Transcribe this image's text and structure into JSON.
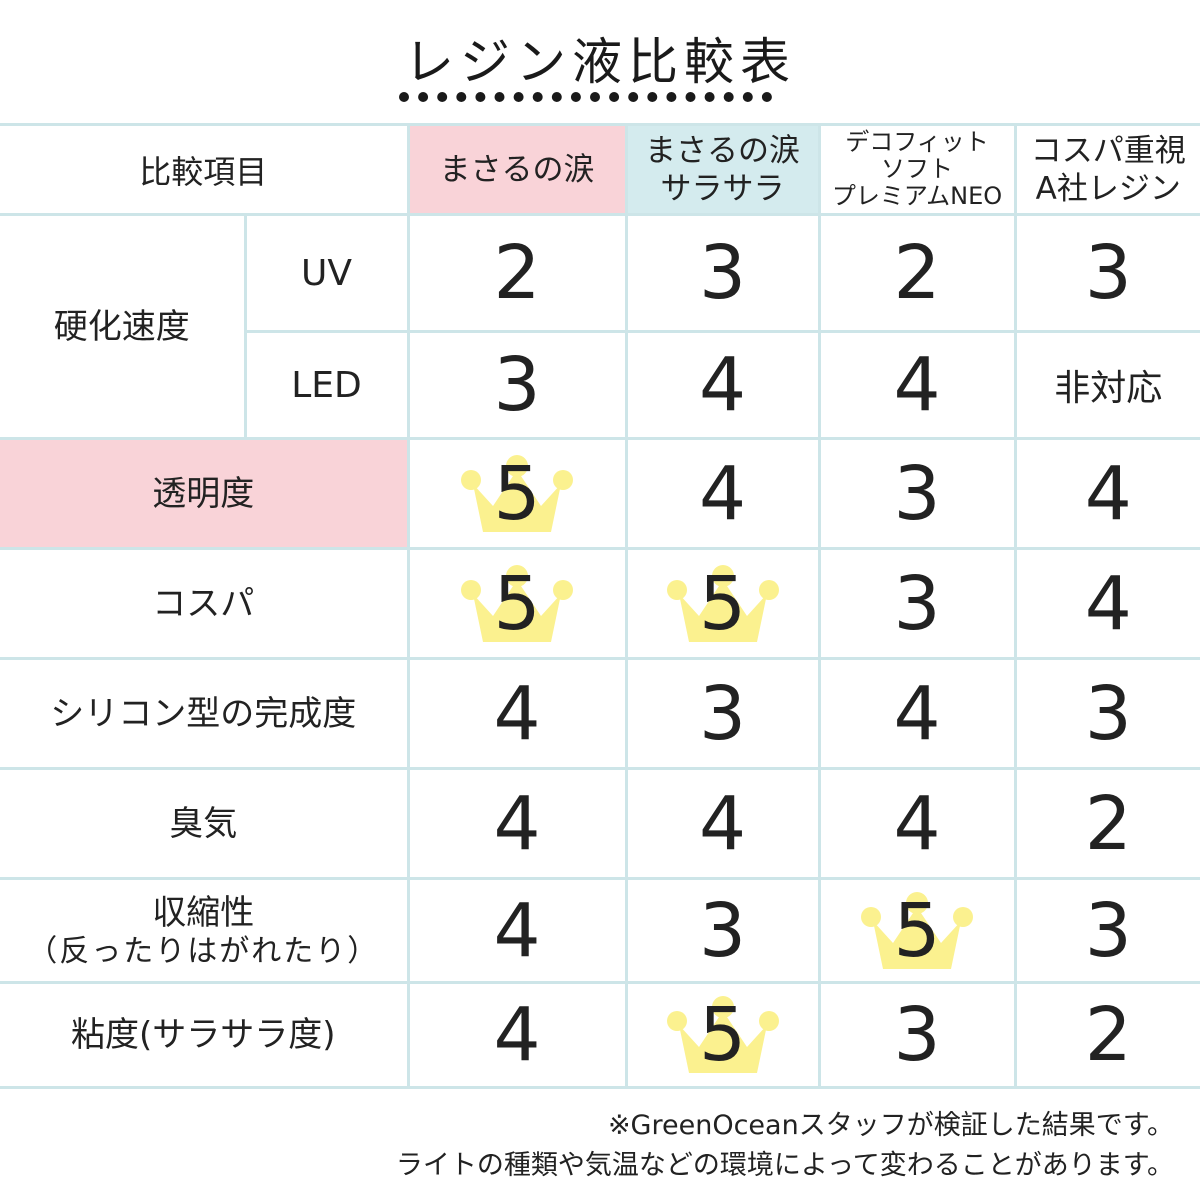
{
  "title": "レジン液比較表",
  "header": {
    "label": "比較項目",
    "products": [
      {
        "lines": [
          "まさるの涙"
        ],
        "style": "pink"
      },
      {
        "lines": [
          "まさるの涙",
          "サラサラ"
        ],
        "style": "blue"
      },
      {
        "lines": [
          "デコフィット",
          "ソフト",
          "プレミアムNEO"
        ],
        "style": "none"
      },
      {
        "lines": [
          "コスパ重視",
          "A社レジン"
        ],
        "style": "none"
      }
    ]
  },
  "curing": {
    "label": "硬化速度",
    "rows": [
      {
        "sub": "UV",
        "scores": [
          {
            "v": "2"
          },
          {
            "v": "3"
          },
          {
            "v": "2"
          },
          {
            "v": "3"
          }
        ]
      },
      {
        "sub": "LED",
        "scores": [
          {
            "v": "3"
          },
          {
            "v": "4"
          },
          {
            "v": "4"
          },
          {
            "v": "非対応"
          }
        ]
      }
    ]
  },
  "rows": [
    {
      "label": "透明度",
      "highlight": true,
      "scores": [
        {
          "v": "5",
          "crown": true
        },
        {
          "v": "4"
        },
        {
          "v": "3"
        },
        {
          "v": "4"
        }
      ]
    },
    {
      "label": "コスパ",
      "scores": [
        {
          "v": "5",
          "crown": true
        },
        {
          "v": "5",
          "crown": true
        },
        {
          "v": "3"
        },
        {
          "v": "4"
        }
      ]
    },
    {
      "label": "シリコン型の完成度",
      "scores": [
        {
          "v": "4"
        },
        {
          "v": "3"
        },
        {
          "v": "4"
        },
        {
          "v": "3"
        }
      ]
    },
    {
      "label": "臭気",
      "scores": [
        {
          "v": "4"
        },
        {
          "v": "4"
        },
        {
          "v": "4"
        },
        {
          "v": "2"
        }
      ]
    },
    {
      "label": "収縮性",
      "sub": "（反ったりはがれたり）",
      "scores": [
        {
          "v": "4"
        },
        {
          "v": "3"
        },
        {
          "v": "5",
          "crown": true
        },
        {
          "v": "3"
        }
      ]
    },
    {
      "label": "粘度(サラサラ度)",
      "scores": [
        {
          "v": "4"
        },
        {
          "v": "5",
          "crown": true
        },
        {
          "v": "3"
        },
        {
          "v": "2"
        }
      ]
    }
  ],
  "notes": [
    "※GreenOceanスタッフが検証した結果です。",
    "ライトの種類や気温などの環境によって変わることがあります。"
  ],
  "colors": {
    "pink": "#f9d3d8",
    "blue": "#d4ebee",
    "crown": "#fbf18f",
    "border": "#cde5e8"
  }
}
